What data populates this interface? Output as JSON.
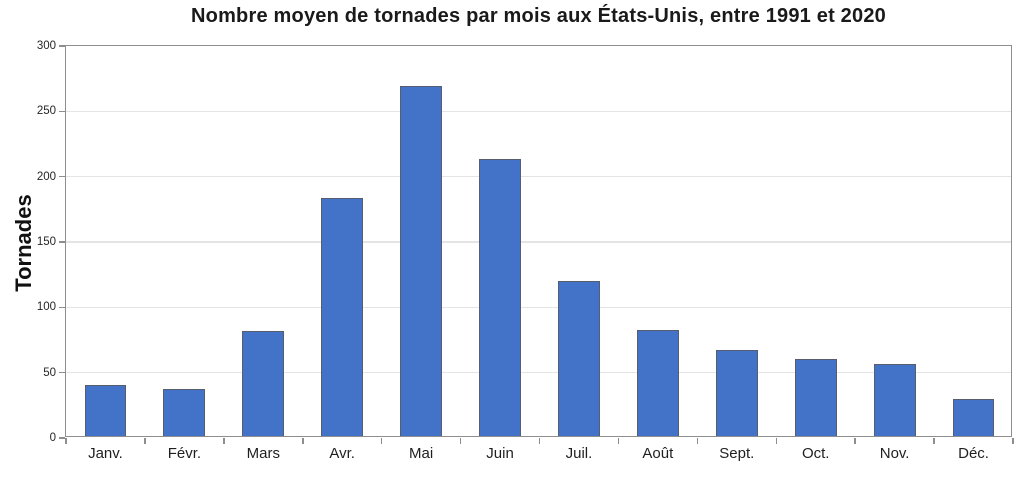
{
  "chart_data": {
    "type": "bar",
    "title": "Nombre moyen de tornades par mois aux États-Unis, entre 1991 et 2020",
    "xlabel": "",
    "ylabel": "Tornades",
    "categories": [
      "Janv.",
      "Févr.",
      "Mars",
      "Avr.",
      "Mai",
      "Juin",
      "Juil.",
      "Août",
      "Sept.",
      "Oct.",
      "Nov.",
      "Déc."
    ],
    "values": [
      39,
      36,
      80,
      182,
      268,
      212,
      119,
      81,
      66,
      59,
      55,
      28
    ],
    "ylim": [
      0,
      300
    ],
    "ytick_step": 50,
    "ytick_labels": [
      "0",
      "50",
      "100",
      "150",
      "200",
      "250",
      "300"
    ],
    "grid": true,
    "legend": "none",
    "colors": {
      "bar_fill": "#4273C8",
      "bar_border": "#555d6e",
      "gridline": "#e4e4e4",
      "axis": "#8e8e8e",
      "text": "#1a1a1a",
      "background": "#ffffff"
    }
  }
}
